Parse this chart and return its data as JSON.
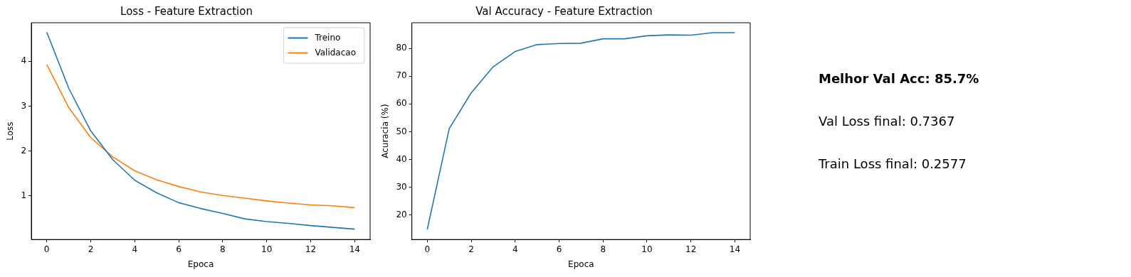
{
  "chart_data": [
    {
      "type": "line",
      "title": "Loss - Feature Extraction",
      "xlabel": "Epoca",
      "ylabel": "Loss",
      "x": [
        0,
        1,
        2,
        3,
        4,
        5,
        6,
        7,
        8,
        9,
        10,
        11,
        12,
        13,
        14
      ],
      "series": [
        {
          "name": "Treino",
          "color": "#1f77b4",
          "values": [
            4.65,
            3.4,
            2.45,
            1.81,
            1.35,
            1.07,
            0.85,
            0.72,
            0.61,
            0.49,
            0.43,
            0.39,
            0.34,
            0.3,
            0.26
          ]
        },
        {
          "name": "Validacao",
          "color": "#ff7f0e",
          "values": [
            3.93,
            2.97,
            2.3,
            1.87,
            1.56,
            1.36,
            1.21,
            1.09,
            1.01,
            0.95,
            0.89,
            0.84,
            0.8,
            0.78,
            0.74
          ]
        }
      ],
      "xlim": [
        -0.7,
        14.7
      ],
      "xticks": [
        0,
        2,
        4,
        6,
        8,
        10,
        12,
        14
      ],
      "ylim": [
        0.03,
        4.86
      ],
      "yticks": [
        1,
        2,
        3,
        4
      ],
      "legend": "top right",
      "grid": false
    },
    {
      "type": "line",
      "title": "Val Accuracy - Feature Extraction",
      "xlabel": "Epoca",
      "ylabel": "Acuracia (%)",
      "x": [
        0,
        1,
        2,
        3,
        4,
        5,
        6,
        7,
        8,
        9,
        10,
        11,
        12,
        13,
        14
      ],
      "series": [
        {
          "color": "#1f77b4",
          "values": [
            14.7,
            51.1,
            64.0,
            73.4,
            78.9,
            81.4,
            81.8,
            81.9,
            83.5,
            83.5,
            84.6,
            84.9,
            84.8,
            85.7,
            85.7
          ]
        }
      ],
      "xlim": [
        -0.7,
        14.7
      ],
      "xticks": [
        0,
        2,
        4,
        6,
        8,
        10,
        12,
        14
      ],
      "ylim": [
        11.1,
        89.3
      ],
      "yticks": [
        20,
        30,
        40,
        50,
        60,
        70,
        80
      ],
      "grid": false
    },
    {
      "type": "other",
      "annotations": [
        "Melhor Val Acc: 85.7%",
        "Val Loss final: 0.7367",
        "Train Loss final: 0.2577"
      ]
    }
  ]
}
